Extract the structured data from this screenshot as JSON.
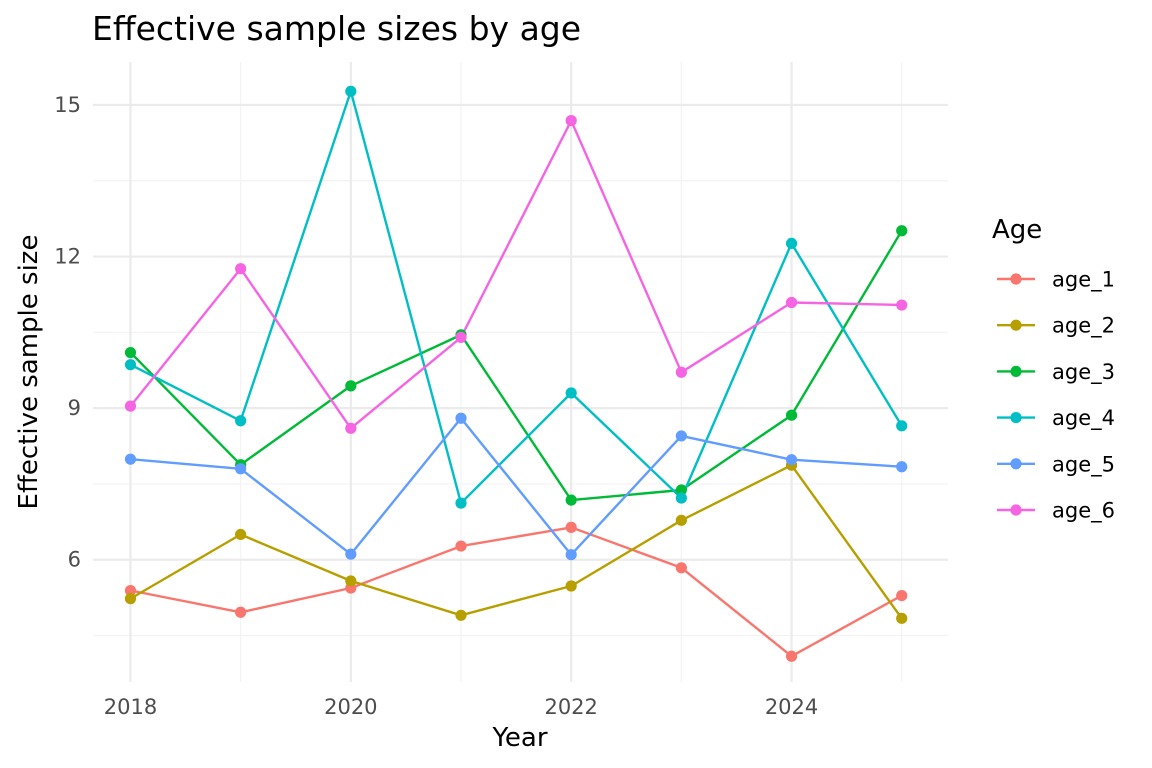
{
  "chart_data": {
    "type": "line",
    "title": "Effective sample sizes by age",
    "xlabel": "Year",
    "ylabel": "Effective sample size",
    "x": [
      2018,
      2019,
      2020,
      2021,
      2022,
      2023,
      2024,
      2025
    ],
    "xlim": [
      2017.66,
      2025.42
    ],
    "ylim": [
      3.58,
      15.85
    ],
    "x_ticks": [
      2018,
      2020,
      2022,
      2024
    ],
    "x_minor": [
      2019,
      2021,
      2023,
      2025
    ],
    "y_ticks": [
      6,
      9,
      12,
      15
    ],
    "y_minor": [
      4.5,
      7.5,
      10.5,
      13.5
    ],
    "grid": true,
    "legend": {
      "title": "Age",
      "position": "right"
    },
    "series": [
      {
        "name": "age_1",
        "color": "#F8766D",
        "values": [
          5.39,
          4.96,
          5.44,
          6.27,
          6.64,
          5.84,
          4.09,
          5.29
        ]
      },
      {
        "name": "age_2",
        "color": "#B79F00",
        "values": [
          5.23,
          6.5,
          5.58,
          4.9,
          5.48,
          6.78,
          7.87,
          4.84
        ]
      },
      {
        "name": "age_3",
        "color": "#00BA38",
        "values": [
          10.1,
          7.88,
          9.44,
          10.45,
          7.18,
          7.38,
          8.86,
          12.51
        ]
      },
      {
        "name": "age_4",
        "color": "#00BFC4",
        "values": [
          9.86,
          8.75,
          15.27,
          7.12,
          9.3,
          7.22,
          12.26,
          8.65
        ]
      },
      {
        "name": "age_5",
        "color": "#619CFF",
        "values": [
          7.99,
          7.8,
          6.11,
          8.8,
          6.1,
          8.45,
          7.98,
          7.84
        ]
      },
      {
        "name": "age_6",
        "color": "#F564E3",
        "values": [
          9.04,
          11.76,
          8.6,
          10.4,
          14.69,
          9.71,
          11.09,
          11.04
        ]
      }
    ]
  }
}
